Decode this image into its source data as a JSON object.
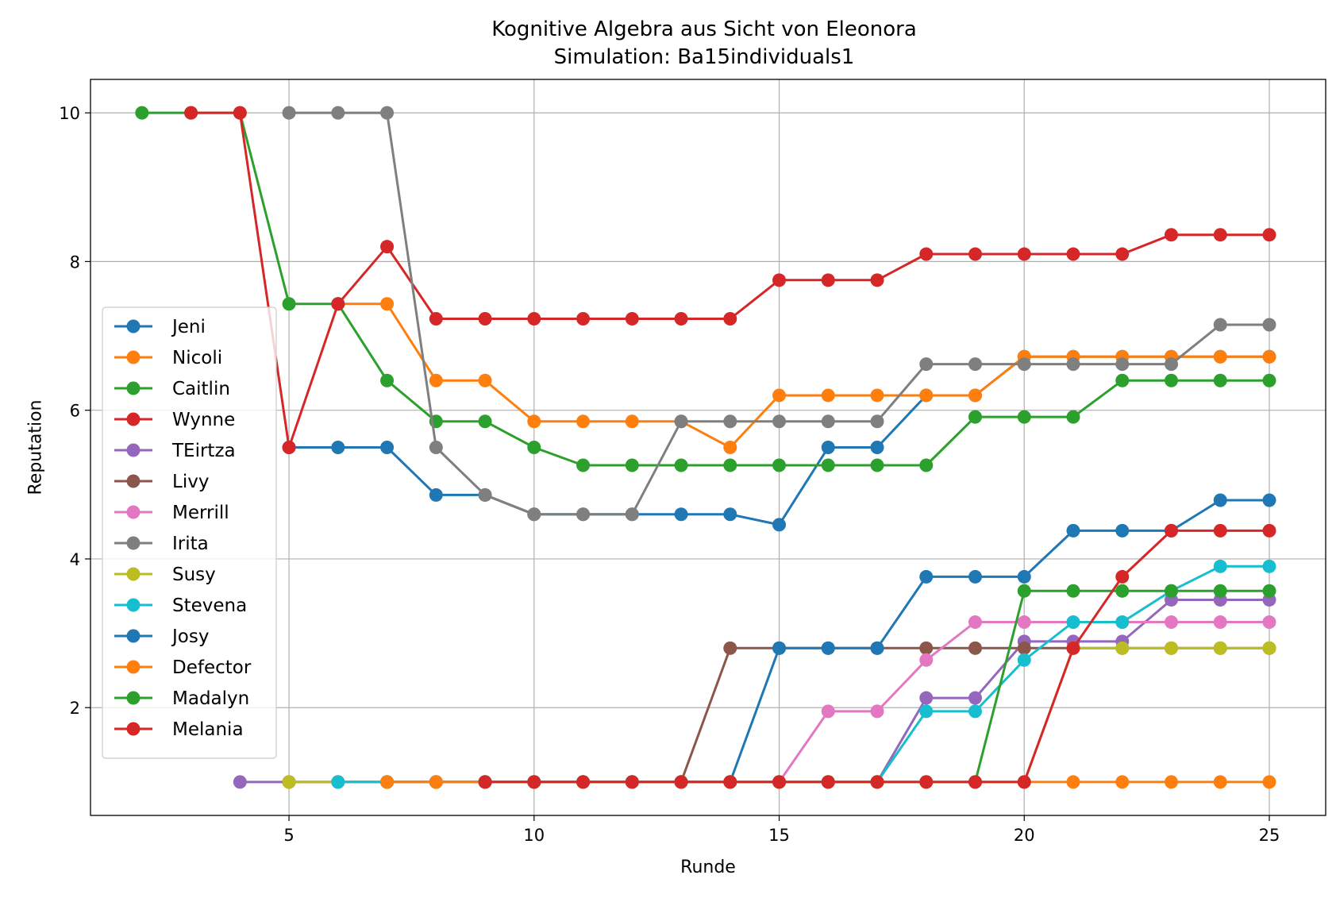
{
  "chart_data": {
    "type": "line",
    "title": "Kognitive Algebra aus Sicht von Eleonora",
    "subtitle": "Simulation: Ba15individuals1",
    "xlabel": "Runde",
    "ylabel": "Reputation",
    "xlim": [
      0.95,
      26.15
    ],
    "ylim": [
      0.55,
      10.45
    ],
    "xticks": [
      5,
      10,
      15,
      20,
      25
    ],
    "yticks": [
      2,
      4,
      6,
      8,
      10
    ],
    "grid": true,
    "legend_position": "left",
    "series": [
      {
        "name": "Jeni",
        "color": "#1f77b4",
        "x": [
          5,
          6,
          7,
          8,
          9,
          10,
          11,
          12,
          13,
          14,
          15,
          16,
          17,
          18,
          19,
          20,
          21,
          22,
          23,
          24,
          25
        ],
        "y": [
          5.5,
          5.5,
          5.5,
          4.86,
          4.86,
          4.6,
          4.6,
          4.6,
          4.6,
          4.6,
          4.46,
          5.5,
          5.5,
          6.2,
          6.2,
          6.72,
          6.72,
          6.72,
          6.72,
          6.72,
          6.72
        ]
      },
      {
        "name": "Nicoli",
        "color": "#ff7f0e",
        "x": [
          6,
          7,
          8,
          9,
          10,
          11,
          12,
          13,
          14,
          15,
          16,
          17,
          18,
          19,
          20,
          21,
          22,
          23,
          24,
          25
        ],
        "y": [
          7.43,
          7.43,
          6.4,
          6.4,
          5.85,
          5.85,
          5.85,
          5.85,
          5.5,
          6.2,
          6.2,
          6.2,
          6.2,
          6.2,
          6.72,
          6.72,
          6.72,
          6.72,
          6.72,
          6.72
        ]
      },
      {
        "name": "Caitlin",
        "color": "#2ca02c",
        "x": [
          2,
          3,
          4,
          5,
          6,
          7,
          8,
          9,
          10,
          11,
          12,
          13,
          14,
          15,
          16,
          17,
          18,
          19,
          20,
          21,
          22,
          23,
          24,
          25
        ],
        "y": [
          10,
          10,
          10,
          7.43,
          7.43,
          6.4,
          5.85,
          5.85,
          5.5,
          5.26,
          5.26,
          5.26,
          5.26,
          5.26,
          5.26,
          5.26,
          5.26,
          5.91,
          5.91,
          5.91,
          6.4,
          6.4,
          6.4,
          6.4
        ]
      },
      {
        "name": "Wynne",
        "color": "#d62728",
        "x": [
          3,
          4,
          5,
          6,
          7,
          8,
          9,
          10,
          11,
          12,
          13,
          14,
          15,
          16,
          17,
          18,
          19,
          20,
          21,
          22,
          23,
          24,
          25
        ],
        "y": [
          10,
          10,
          5.5,
          7.43,
          8.2,
          7.23,
          7.23,
          7.23,
          7.23,
          7.23,
          7.23,
          7.23,
          7.75,
          7.75,
          7.75,
          8.1,
          8.1,
          8.1,
          8.1,
          8.1,
          8.36,
          8.36,
          8.36
        ]
      },
      {
        "name": "TEirtza",
        "color": "#9467bd",
        "x": [
          4,
          5,
          6,
          7,
          8,
          9,
          10,
          11,
          12,
          13,
          14,
          15,
          16,
          17,
          18,
          19,
          20,
          21,
          22,
          23,
          24,
          25
        ],
        "y": [
          1,
          1,
          1,
          1,
          1,
          1,
          1,
          1,
          1,
          1,
          1,
          1,
          1,
          1,
          2.13,
          2.13,
          2.89,
          2.89,
          2.89,
          3.45,
          3.45,
          3.45
        ]
      },
      {
        "name": "Livy",
        "color": "#8c564b",
        "x": [
          5,
          6,
          7,
          8,
          9,
          10,
          11,
          12,
          13,
          14,
          15,
          16,
          17,
          18,
          19,
          20,
          21,
          22,
          23,
          24,
          25
        ],
        "y": [
          1,
          1,
          1,
          1,
          1,
          1,
          1,
          1,
          1,
          2.8,
          2.8,
          2.8,
          2.8,
          2.8,
          2.8,
          2.8,
          2.8,
          2.8,
          2.8,
          2.8,
          2.8
        ]
      },
      {
        "name": "Merrill",
        "color": "#e377c2",
        "x": [
          6,
          7,
          8,
          9,
          10,
          11,
          12,
          13,
          14,
          15,
          16,
          17,
          18,
          19,
          20,
          21,
          22,
          23,
          24,
          25
        ],
        "y": [
          1,
          1,
          1,
          1,
          1,
          1,
          1,
          1,
          1,
          1,
          1.95,
          1.95,
          2.64,
          3.15,
          3.15,
          3.15,
          3.15,
          3.15,
          3.15,
          3.15
        ]
      },
      {
        "name": "Irita",
        "color": "#7f7f7f",
        "x": [
          5,
          6,
          7,
          8,
          9,
          10,
          11,
          12,
          13,
          14,
          15,
          16,
          17,
          18,
          19,
          20,
          21,
          22,
          23,
          24,
          25
        ],
        "y": [
          10,
          10,
          10,
          5.5,
          4.86,
          4.6,
          4.6,
          4.6,
          5.85,
          5.85,
          5.85,
          5.85,
          5.85,
          6.62,
          6.62,
          6.62,
          6.62,
          6.62,
          6.62,
          7.15,
          7.15
        ]
      },
      {
        "name": "Susy",
        "color": "#bcbd22",
        "x": [
          5,
          6,
          7,
          8,
          9,
          10,
          11,
          12,
          13,
          14,
          15,
          16,
          17,
          18,
          19,
          20,
          21,
          22,
          23,
          24,
          25
        ],
        "y": [
          1,
          1,
          1,
          1,
          1,
          1,
          1,
          1,
          1,
          1,
          1,
          1,
          1,
          1,
          1,
          1,
          2.8,
          2.8,
          2.8,
          2.8,
          2.8
        ]
      },
      {
        "name": "Stevena",
        "color": "#17becf",
        "x": [
          6,
          7,
          8,
          9,
          10,
          11,
          12,
          13,
          14,
          15,
          16,
          17,
          18,
          19,
          20,
          21,
          22,
          23,
          24,
          25
        ],
        "y": [
          1,
          1,
          1,
          1,
          1,
          1,
          1,
          1,
          1,
          1,
          1,
          1,
          1.95,
          1.95,
          2.64,
          3.15,
          3.15,
          3.57,
          3.9,
          3.9
        ]
      },
      {
        "name": "Josy",
        "color": "#1f77b4",
        "x": [
          7,
          8,
          9,
          10,
          11,
          12,
          13,
          14,
          15,
          16,
          17,
          18,
          19,
          20,
          21,
          22,
          23,
          24,
          25
        ],
        "y": [
          1,
          1,
          1,
          1,
          1,
          1,
          1,
          1,
          2.8,
          2.8,
          2.8,
          3.76,
          3.76,
          3.76,
          4.38,
          4.38,
          4.38,
          4.79,
          4.79
        ]
      },
      {
        "name": "Defector",
        "color": "#ff7f0e",
        "x": [
          7,
          8,
          9,
          10,
          11,
          12,
          13,
          14,
          15,
          16,
          17,
          18,
          19,
          20,
          21,
          22,
          23,
          24,
          25
        ],
        "y": [
          1,
          1,
          1,
          1,
          1,
          1,
          1,
          1,
          1,
          1,
          1,
          1,
          1,
          1,
          1,
          1,
          1,
          1,
          1
        ]
      },
      {
        "name": "Madalyn",
        "color": "#2ca02c",
        "x": [
          9,
          10,
          11,
          12,
          13,
          14,
          15,
          16,
          17,
          18,
          19,
          20,
          21,
          22,
          23,
          24,
          25
        ],
        "y": [
          1,
          1,
          1,
          1,
          1,
          1,
          1,
          1,
          1,
          1,
          1,
          3.57,
          3.57,
          3.57,
          3.57,
          3.57,
          3.57
        ]
      },
      {
        "name": "Melania",
        "color": "#d62728",
        "x": [
          9,
          10,
          11,
          12,
          13,
          14,
          15,
          16,
          17,
          18,
          19,
          20,
          21,
          22,
          23,
          24,
          25
        ],
        "y": [
          1,
          1,
          1,
          1,
          1,
          1,
          1,
          1,
          1,
          1,
          1,
          1,
          2.8,
          3.76,
          4.38,
          4.38,
          4.38
        ]
      }
    ]
  }
}
